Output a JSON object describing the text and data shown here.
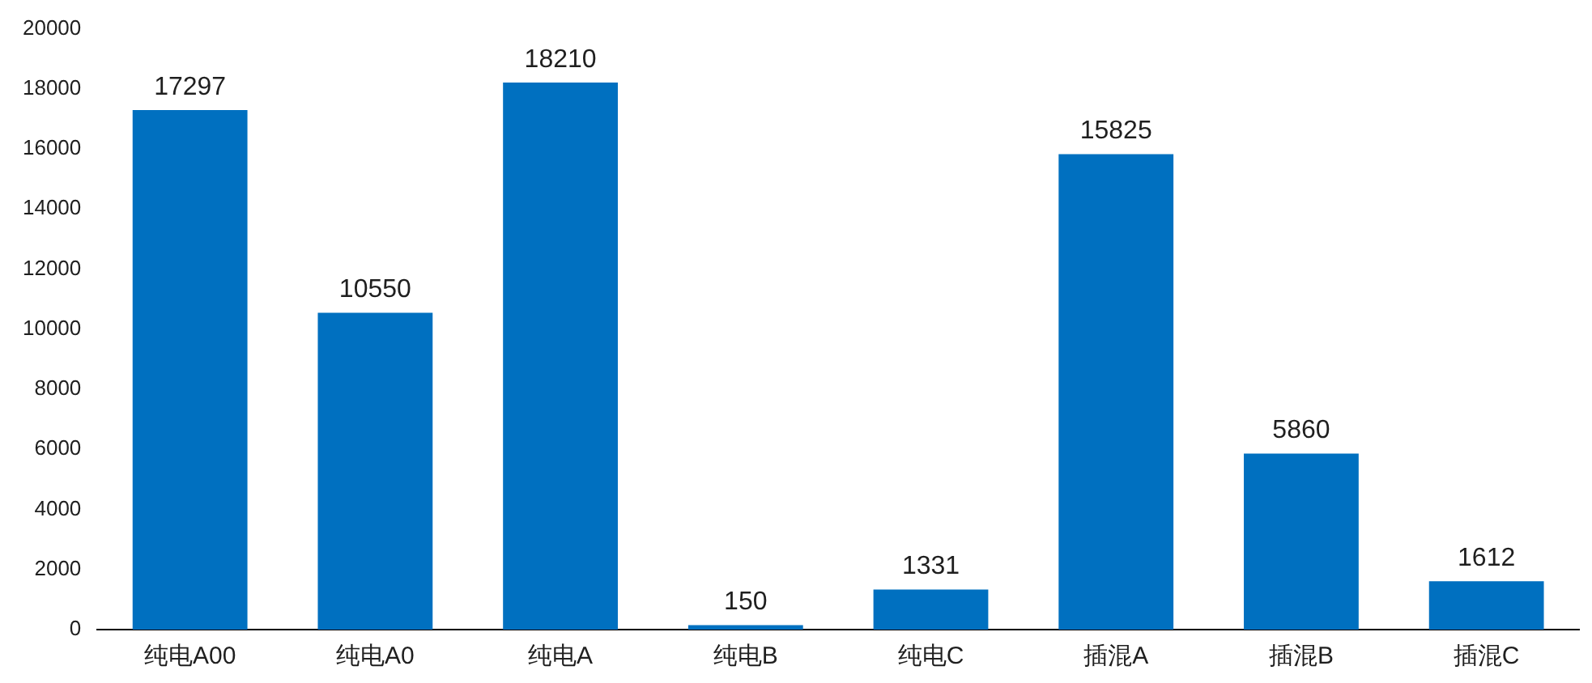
{
  "chart_data": {
    "type": "bar",
    "categories": [
      "纯电A00",
      "纯电A0",
      "纯电A",
      "纯电B",
      "纯电C",
      "插混A",
      "插混B",
      "插混C"
    ],
    "values": [
      17297,
      10550,
      18210,
      150,
      1331,
      15825,
      5860,
      1612
    ],
    "color": "#0070c0",
    "ylim": [
      0,
      20000
    ],
    "yticks": [
      0,
      2000,
      4000,
      6000,
      8000,
      10000,
      12000,
      14000,
      16000,
      18000,
      20000
    ],
    "grid": false,
    "legend": false,
    "data_labels": true
  }
}
